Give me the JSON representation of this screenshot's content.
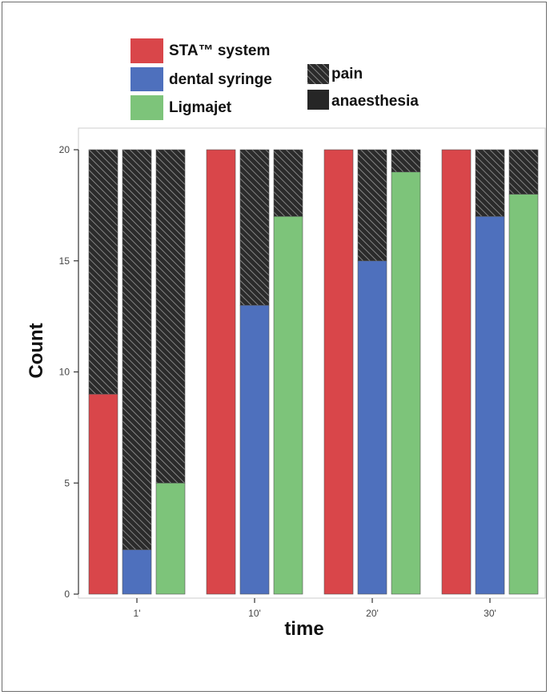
{
  "chart_data": {
    "type": "bar",
    "stacked": true,
    "xlabel": "time",
    "ylabel": "Count",
    "ylim": [
      0,
      20
    ],
    "yticks": [
      "0",
      "5",
      "10",
      "15",
      "20"
    ],
    "categories": [
      "1'",
      "10'",
      "20'",
      "30'"
    ],
    "groups": [
      {
        "name": "STA™ system",
        "color": "#d9464a"
      },
      {
        "name": "dental syringe",
        "color": "#4e70bd"
      },
      {
        "name": "Ligmajet",
        "color": "#7dc47a"
      }
    ],
    "outcomes": [
      {
        "name": "pain",
        "pattern": "hatched"
      },
      {
        "name": "anaesthesia",
        "pattern": "solid"
      }
    ],
    "anaesthesia_values": [
      [
        9,
        2,
        5
      ],
      [
        20,
        13,
        17
      ],
      [
        20,
        15,
        19
      ],
      [
        20,
        17,
        18
      ]
    ],
    "pain_values": [
      [
        11,
        18,
        15
      ],
      [
        0,
        7,
        3
      ],
      [
        0,
        5,
        1
      ],
      [
        0,
        3,
        2
      ]
    ],
    "legend_position": "top-left"
  }
}
